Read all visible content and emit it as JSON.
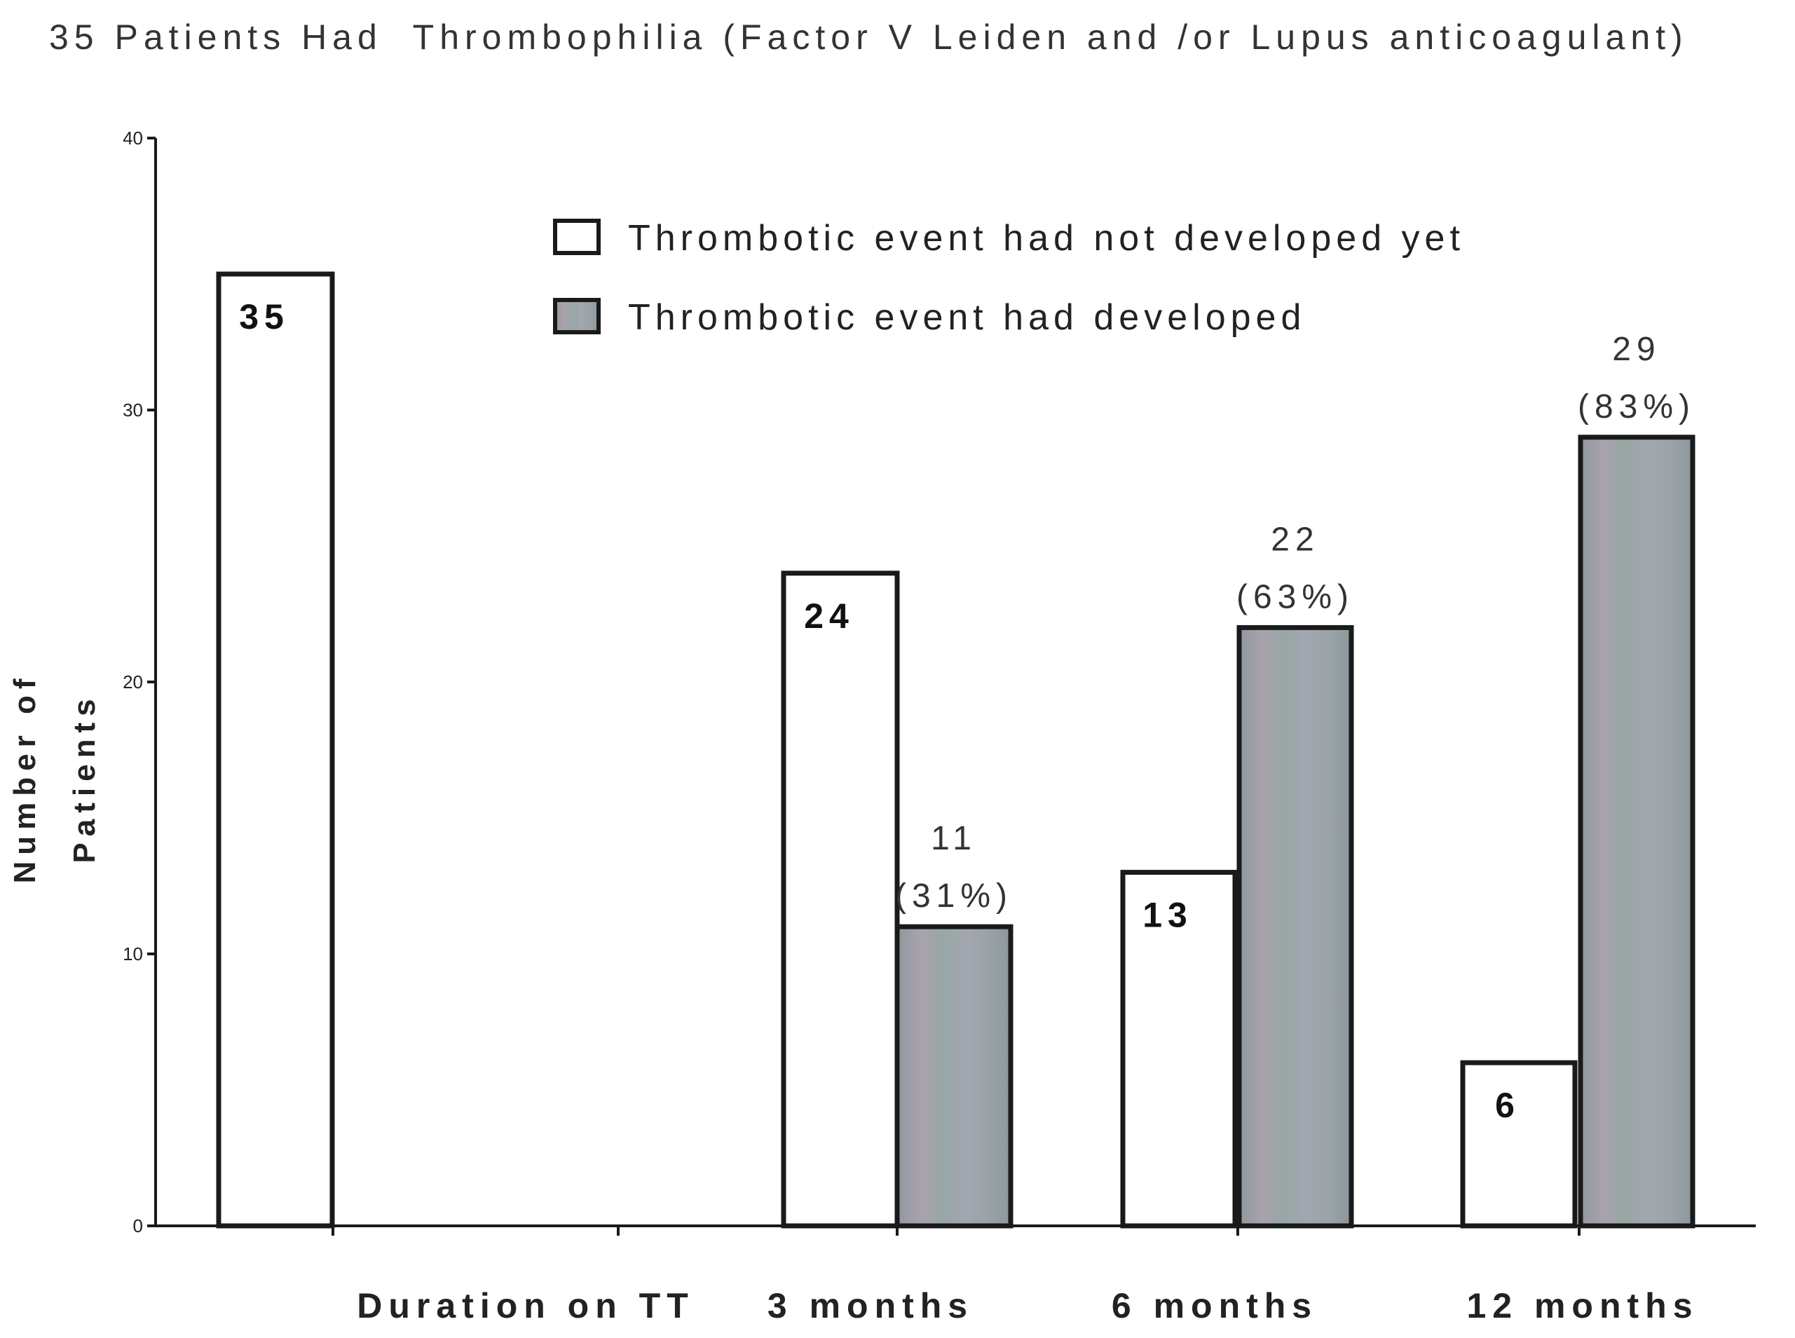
{
  "chart_data": {
    "type": "bar",
    "title": "35 Patients Had  Thrombophilia (Factor V Leiden and /or Lupus anticoagulant)",
    "ylabel_lines": [
      "Number of",
      "Patients"
    ],
    "xlabel": "Duration on TT",
    "ylim": [
      0,
      40
    ],
    "yticks": [
      0,
      10,
      20,
      30,
      40
    ],
    "categories": [
      "",
      "3 months",
      "6 months",
      "12 months"
    ],
    "series": [
      {
        "name": "Thrombotic event had not developed yet",
        "style": "open",
        "values": [
          35,
          24,
          13,
          6
        ],
        "labels": [
          "35",
          "24",
          "13",
          "6"
        ]
      },
      {
        "name": "Thrombotic event had developed",
        "style": "filled",
        "values": [
          null,
          11,
          22,
          29
        ],
        "labels": [
          null,
          "11",
          "22",
          "29"
        ],
        "percent_labels": [
          null,
          "(31%)",
          "(63%)",
          "(83%)"
        ]
      }
    ],
    "legend_position": "top-center",
    "grid": false
  },
  "colors": {
    "open_fill": "#ffffff",
    "filled_light": "#a6adb3",
    "filled_dark": "#8e979c",
    "stroke": "#1a1a1a",
    "text": "#222222"
  }
}
